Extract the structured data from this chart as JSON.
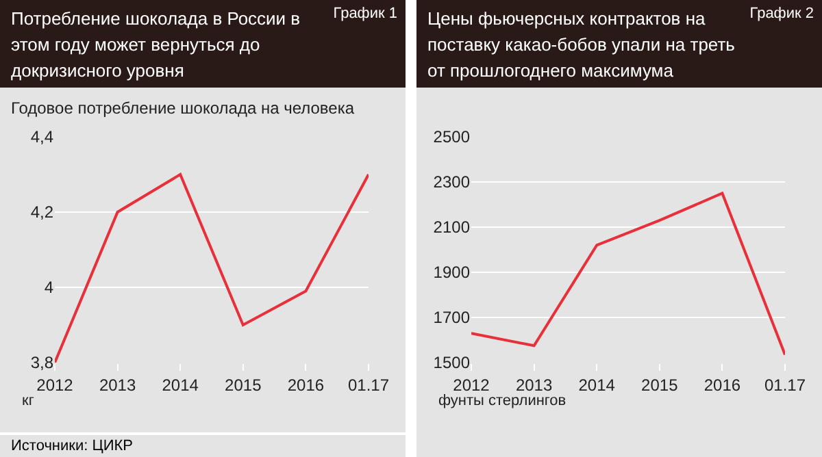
{
  "chart_data": [
    {
      "type": "line",
      "title": "Потребление шоколада в России в этом году может вернуться до докризисного уровня",
      "subtitle": "Годовое потребление шоколада на человека",
      "annotations": [
        "График 1",
        "кг",
        "Источники: ЦИКР"
      ],
      "categories": [
        "2012",
        "2013",
        "2014",
        "2015",
        "2016",
        "01.17"
      ],
      "series": [
        {
          "color": "#e8303a",
          "values": [
            3.8,
            4.2,
            4.3,
            3.9,
            3.99,
            4.3
          ]
        }
      ],
      "ylim": [
        3.8,
        4.4
      ],
      "yticks": [
        {
          "value": 3.8,
          "label": "3,8"
        },
        4,
        {
          "value": 4.2,
          "label": "4,2"
        },
        {
          "value": 4.4,
          "label": "4,4"
        }
      ],
      "grid": "y",
      "marker": "none",
      "line_style": "solid"
    },
    {
      "type": "line",
      "title": "Цены фьючерсных контрактов на поставку какао-бобов упали на треть от прошлогоднего максимума",
      "annotations": [
        "График 2",
        "фунты стерлингов"
      ],
      "categories": [
        "2012",
        "2013",
        "2014",
        "2015",
        "2016",
        "01.17"
      ],
      "series": [
        {
          "color": "#e8303a",
          "values": [
            1630,
            1575,
            2020,
            2130,
            2250,
            1535
          ]
        }
      ],
      "ylim": [
        1500,
        2500
      ],
      "yticks": [
        1500,
        1700,
        1900,
        2100,
        2300,
        2500
      ],
      "grid": "y",
      "marker": "none",
      "line_style": "solid"
    }
  ]
}
